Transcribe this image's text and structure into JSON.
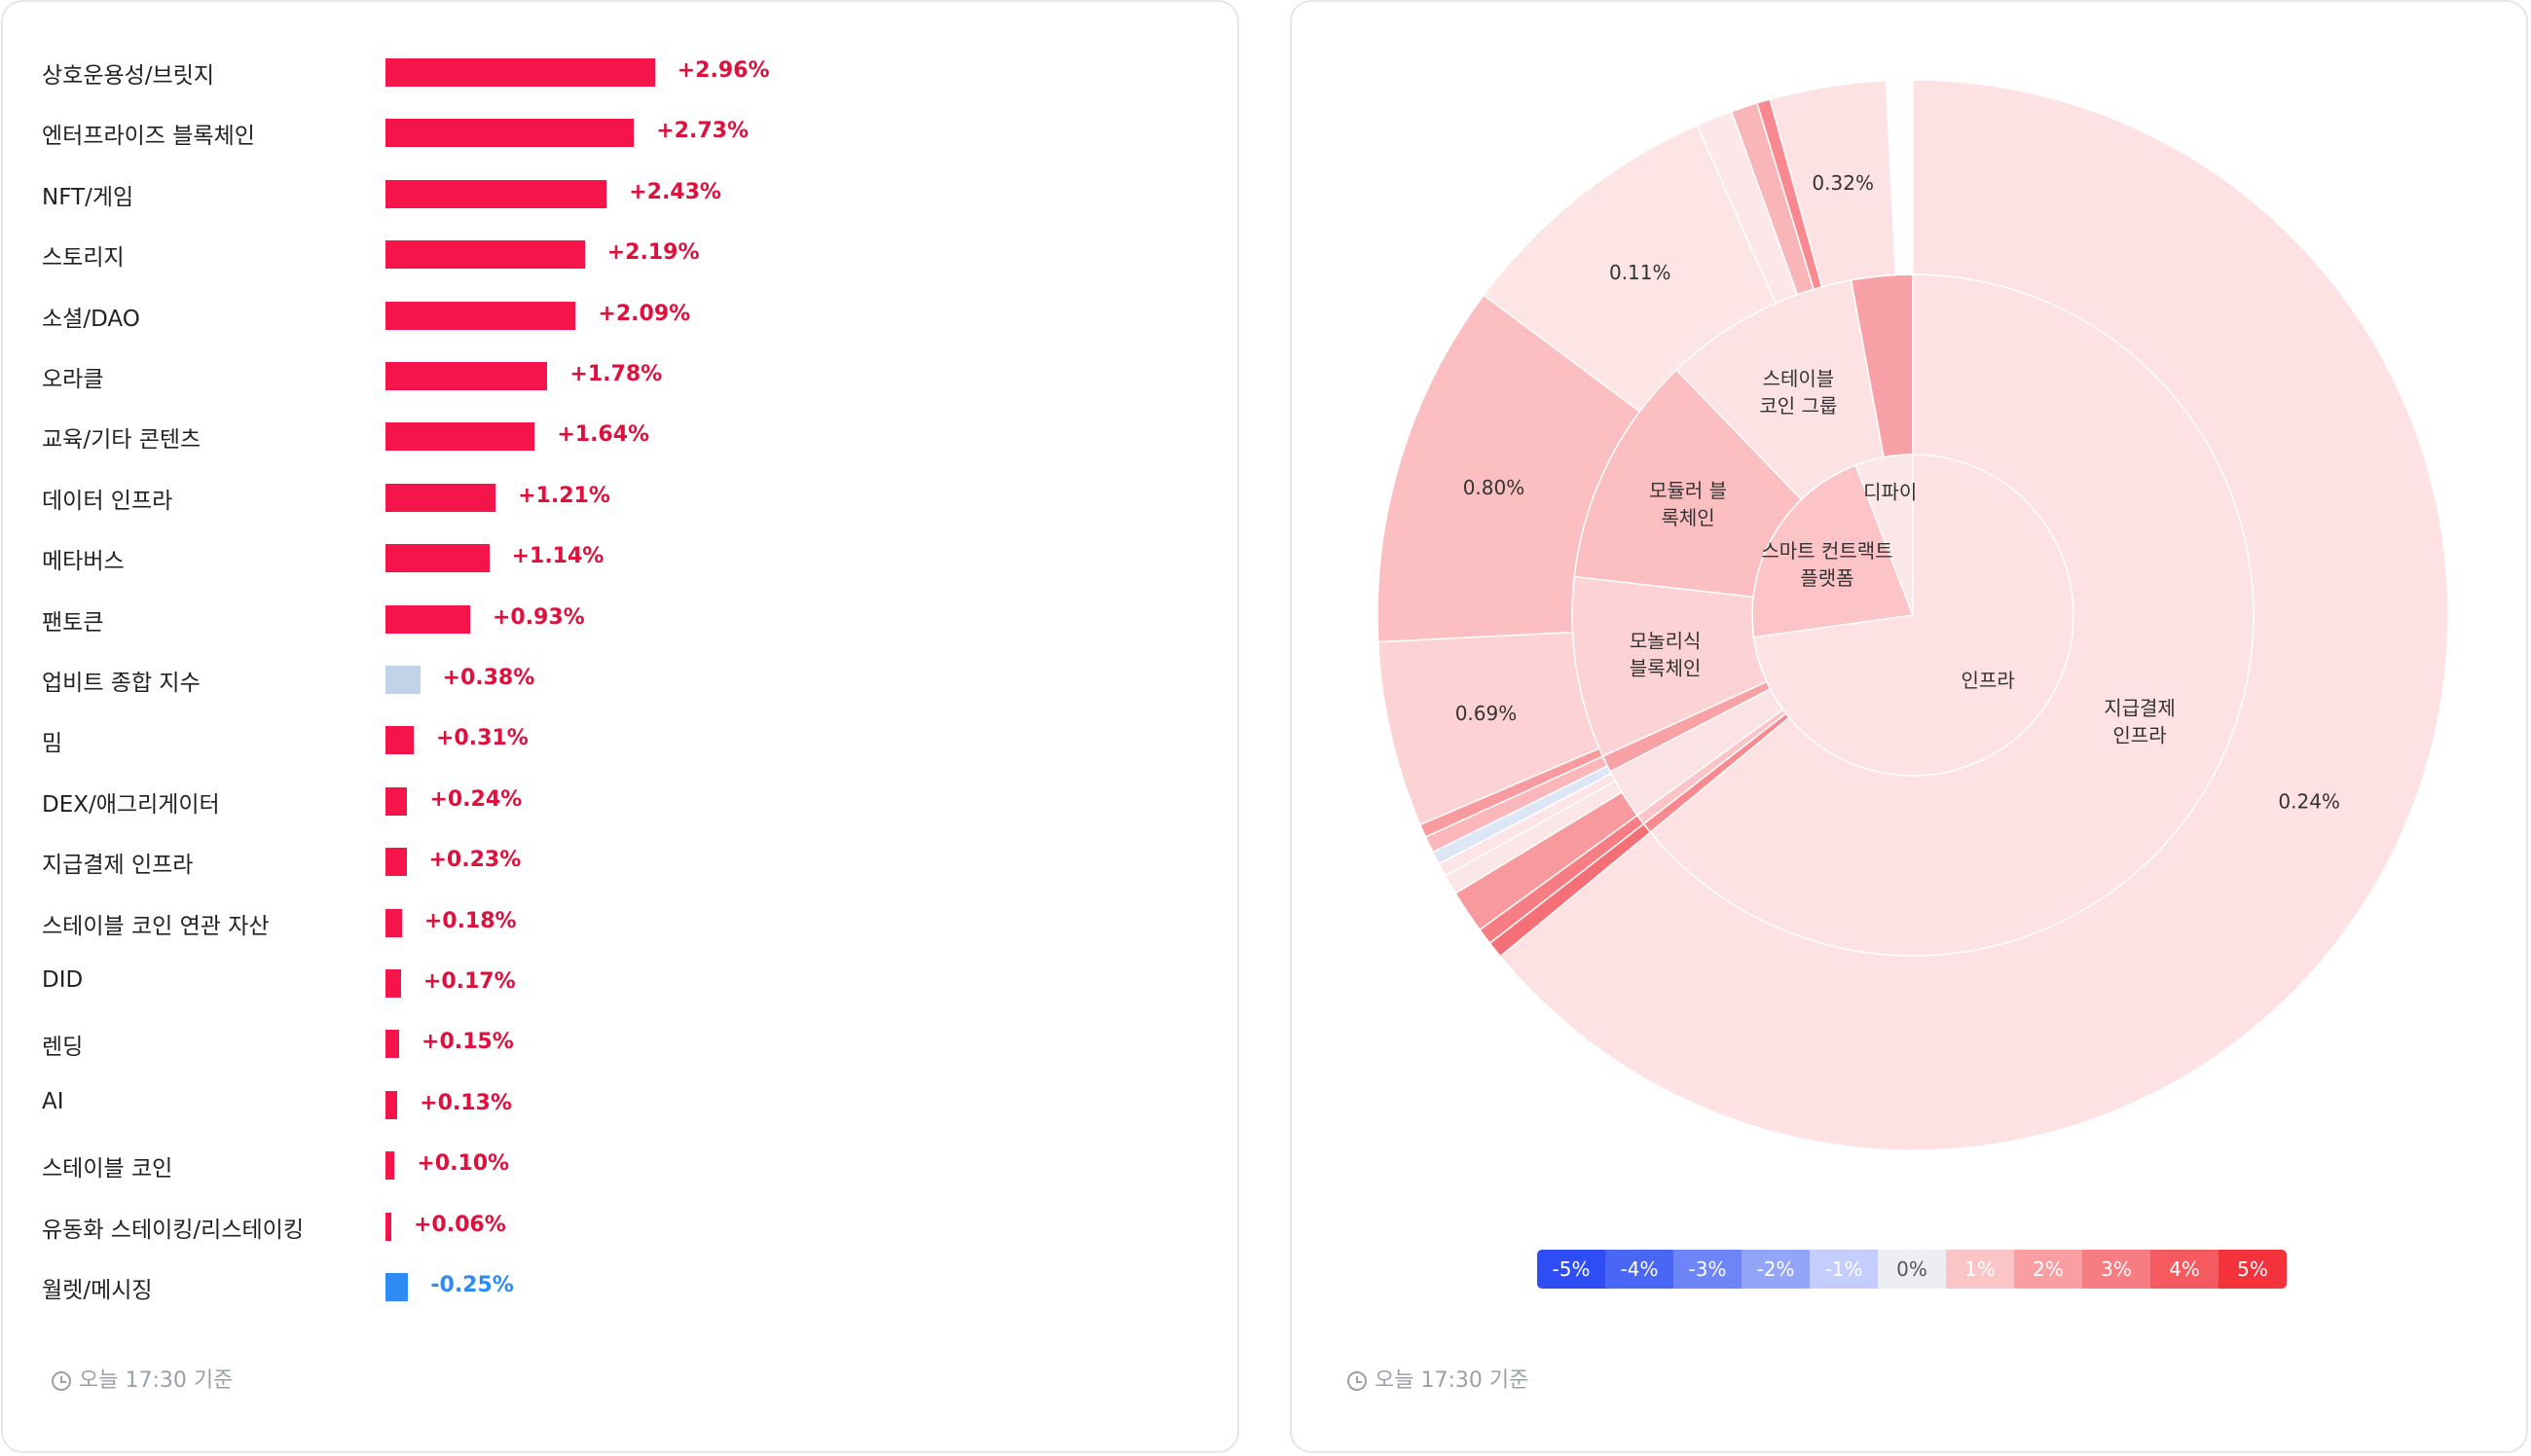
{
  "bar_panel": {
    "footer": "오늘 17:30 기준"
  },
  "sunburst_panel": {
    "footer": "오늘 17:30 기준",
    "legend": [
      {
        "label": "-5%",
        "color": "#2f4df5",
        "text": "#ffffff"
      },
      {
        "label": "-4%",
        "color": "#4a66f5",
        "text": "#ffffff"
      },
      {
        "label": "-3%",
        "color": "#6e85f7",
        "text": "#ffffff"
      },
      {
        "label": "-2%",
        "color": "#94a5f8",
        "text": "#ffffff"
      },
      {
        "label": "-1%",
        "color": "#c4cdfb",
        "text": "#ffffff"
      },
      {
        "label": "0%",
        "color": "#eceef2",
        "text": "#555555"
      },
      {
        "label": "1%",
        "color": "#fbc4c6",
        "text": "#ffffff"
      },
      {
        "label": "2%",
        "color": "#f99fa3",
        "text": "#ffffff"
      },
      {
        "label": "3%",
        "color": "#f77d83",
        "text": "#ffffff"
      },
      {
        "label": "4%",
        "color": "#f55a61",
        "text": "#ffffff"
      },
      {
        "label": "5%",
        "color": "#f3323c",
        "text": "#ffffff"
      }
    ]
  },
  "colors": {
    "positive_bar": "#f5154a",
    "positive_text": "#e0103d",
    "negative_bar": "#2e8bf5",
    "negative_text": "#2e8bf5",
    "index_bar": "#c1d3e8"
  },
  "chart_data": [
    {
      "type": "bar",
      "orientation": "horizontal",
      "categories": [
        "상호운용성/브릿지",
        "엔터프라이즈 블록체인",
        "NFT/게임",
        "스토리지",
        "소셜/DAO",
        "오라클",
        "교육/기타 콘텐츠",
        "데이터 인프라",
        "메타버스",
        "팬토큰",
        "업비트 종합 지수",
        "밈",
        "DEX/애그리게이터",
        "지급결제 인프라",
        "스테이블 코인 연관 자산",
        "DID",
        "렌딩",
        "AI",
        "스테이블 코인",
        "유동화 스테이킹/리스테이킹",
        "월렛/메시징"
      ],
      "values": [
        2.96,
        2.73,
        2.43,
        2.19,
        2.09,
        1.78,
        1.64,
        1.21,
        1.14,
        0.93,
        0.38,
        0.31,
        0.24,
        0.23,
        0.18,
        0.17,
        0.15,
        0.13,
        0.1,
        0.06,
        -0.25
      ],
      "labels": [
        "+2.96%",
        "+2.73%",
        "+2.43%",
        "+2.19%",
        "+2.09%",
        "+1.78%",
        "+1.64%",
        "+1.21%",
        "+1.14%",
        "+0.93%",
        "+0.38%",
        "+0.31%",
        "+0.24%",
        "+0.23%",
        "+0.18%",
        "+0.17%",
        "+0.15%",
        "+0.13%",
        "+0.10%",
        "+0.06%",
        "-0.25%"
      ],
      "highlight": "업비트 종합 지수"
    },
    {
      "type": "sunburst",
      "rings": [
        {
          "level": 1,
          "segments": [
            {
              "label": "인프라",
              "share": 0.728,
              "color": "#fde1e3"
            },
            {
              "label": "스마트 컨트랙트\n플랫폼",
              "share": 0.214,
              "color": "#fcc4c6"
            },
            {
              "label": "디파이",
              "share": 0.058,
              "color": "#fbe6e8"
            }
          ]
        },
        {
          "level": 2,
          "segments": [
            {
              "label": "지급결제\n인프라",
              "share": 0.64,
              "color": "#fde1e3"
            },
            {
              "label": "",
              "share": 0.005,
              "color": "#f88a8f"
            },
            {
              "label": "",
              "share": 0.005,
              "color": "#fcc4c6"
            },
            {
              "label": "",
              "share": 0.024,
              "color": "#fbe2e4"
            },
            {
              "label": "",
              "share": 0.008,
              "color": "#f8a2a6"
            },
            {
              "label": "모놀리식\n블록체인",
              "share": 0.086,
              "color": "#fdd2d4"
            },
            {
              "label": "모듈러 블\n록체인",
              "share": 0.11,
              "color": "#fcbfc1"
            },
            {
              "label": "스테이블\n코인 그룹",
              "share": 0.093,
              "color": "#fde2e4"
            },
            {
              "label": "",
              "share": 0.029,
              "color": "#f7a0a5"
            }
          ]
        },
        {
          "level": 3,
          "segments": [
            {
              "label": "0.24%",
              "share": 0.64,
              "color": "#fde1e3"
            },
            {
              "label": "",
              "share": 0.005,
              "color": "#f56f76"
            },
            {
              "label": "",
              "share": 0.005,
              "color": "#f67d84"
            },
            {
              "label": "",
              "share": 0.013,
              "color": "#f8999e"
            },
            {
              "label": "",
              "share": 0.006,
              "color": "#fbe6e8"
            },
            {
              "label": "",
              "share": 0.004,
              "color": "#fde4e6"
            },
            {
              "label": "",
              "share": 0.004,
              "color": "#dde6f5"
            },
            {
              "label": "",
              "share": 0.005,
              "color": "#fbb7ba"
            },
            {
              "label": "",
              "share": 0.004,
              "color": "#f99a9f"
            },
            {
              "label": "0.69%",
              "share": 0.056,
              "color": "#fdd2d4"
            },
            {
              "label": "0.80%",
              "share": 0.11,
              "color": "#fcbfc1"
            },
            {
              "label": "0.11%",
              "share": 0.082,
              "color": "#fde4e5"
            },
            {
              "label": "",
              "share": 0.011,
              "color": "#fde7e9"
            },
            {
              "label": "",
              "share": 0.008,
              "color": "#f9b6b9"
            },
            {
              "label": "",
              "share": 0.004,
              "color": "#f88990"
            },
            {
              "label": "0.32%",
              "share": 0.035,
              "color": "#fde2e4"
            }
          ]
        }
      ]
    }
  ]
}
